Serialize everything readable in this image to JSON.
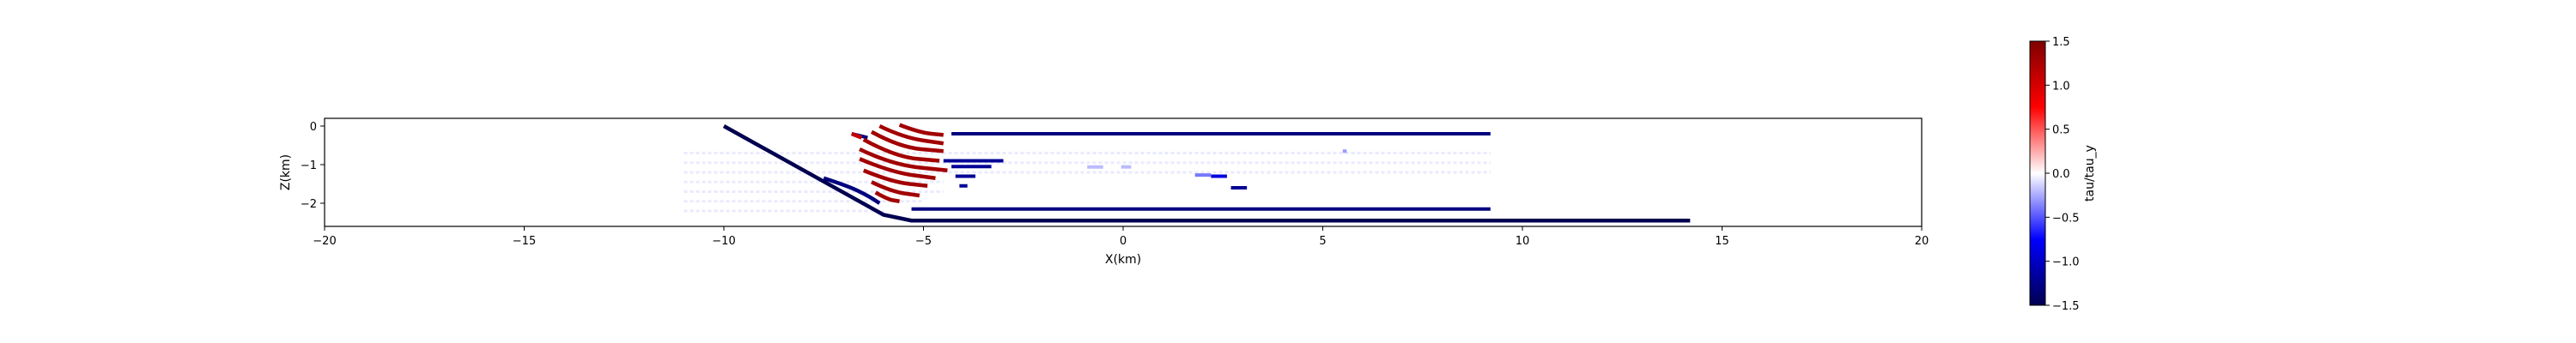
{
  "chart_data": {
    "type": "heatmap",
    "title": "",
    "xlabel": "X(km)",
    "ylabel": "Z(km)",
    "xlim": [
      -20,
      20
    ],
    "ylim": [
      -2.6,
      0.2
    ],
    "x_ticks": [
      -20,
      -15,
      -10,
      -5,
      0,
      5,
      10,
      15,
      20
    ],
    "x_tick_labels": [
      "−20",
      "−15",
      "−10",
      "−5",
      "0",
      "5",
      "10",
      "15",
      "20"
    ],
    "y_ticks": [
      0,
      -1,
      -2
    ],
    "y_tick_labels": [
      "0",
      "−1",
      "−2"
    ],
    "grid": false,
    "colorbar": {
      "label": "tau/tau_y",
      "colormap": "seismic",
      "min": -1.5,
      "max": 1.5,
      "ticks": [
        1.5,
        1.0,
        0.5,
        0.0,
        -0.5,
        -1.0,
        -1.5
      ],
      "tick_labels": [
        "1.5",
        "1.0",
        "0.5",
        "0.0",
        "−0.5",
        "−1.0",
        "−1.5"
      ],
      "colors": {
        "high": "#800000",
        "positive": "#ff0000",
        "zero": "#ffffff",
        "negative": "#0000ff",
        "low": "#000050"
      }
    },
    "fault_lines": [
      {
        "value": -1.5,
        "points": [
          [
            -10.0,
            0.0
          ],
          [
            -6.0,
            -2.3
          ],
          [
            -5.3,
            -2.45
          ],
          [
            14.2,
            -2.45
          ]
        ]
      }
    ],
    "segments": [
      {
        "value": -1.3,
        "x": [
          -6.8,
          -6.4
        ],
        "z": [
          -0.2,
          -0.3
        ]
      },
      {
        "value": -1.3,
        "x": [
          -4.3,
          9.2
        ],
        "z": [
          -0.2,
          -0.2
        ]
      },
      {
        "value": -1.2,
        "x": [
          -4.5,
          -3.0
        ],
        "z": [
          -0.9,
          -0.9
        ]
      },
      {
        "value": -1.2,
        "x": [
          -4.3,
          -3.3
        ],
        "z": [
          -1.05,
          -1.05
        ]
      },
      {
        "value": -1.2,
        "x": [
          -4.2,
          -3.7
        ],
        "z": [
          -1.3,
          -1.3
        ]
      },
      {
        "value": -1.2,
        "x": [
          -4.1,
          -3.9
        ],
        "z": [
          -1.55,
          -1.55
        ]
      },
      {
        "value": -0.9,
        "x": [
          2.2,
          2.6
        ],
        "z": [
          -1.3,
          -1.3
        ]
      },
      {
        "value": -1.2,
        "x": [
          2.7,
          3.1
        ],
        "z": [
          -1.6,
          -1.6
        ]
      },
      {
        "value": -1.3,
        "x": [
          -5.3,
          9.2
        ],
        "z": [
          -2.15,
          -2.15
        ]
      },
      {
        "value": -0.2,
        "x": [
          -0.9,
          -0.5
        ],
        "z": [
          -1.06,
          -1.06
        ]
      },
      {
        "value": -0.2,
        "x": [
          -0.05,
          0.2
        ],
        "z": [
          -1.06,
          -1.06
        ]
      },
      {
        "value": -0.4,
        "x": [
          1.8,
          2.2
        ],
        "z": [
          -1.27,
          -1.27
        ]
      },
      {
        "value": -0.3,
        "x": [
          5.5,
          5.6
        ],
        "z": [
          -0.65,
          -0.65
        ]
      }
    ],
    "curves": [
      {
        "value": -1.3,
        "points": [
          [
            -7.5,
            -1.35
          ],
          [
            -6.9,
            -1.55
          ],
          [
            -6.4,
            -1.8
          ],
          [
            -6.1,
            -2.0
          ]
        ]
      },
      {
        "value": 1.3,
        "points": [
          [
            -5.6,
            0.03
          ],
          [
            -5.1,
            -0.17
          ],
          [
            -4.5,
            -0.23
          ]
        ]
      },
      {
        "value": 1.3,
        "points": [
          [
            -6.1,
            0.0
          ],
          [
            -5.5,
            -0.3
          ],
          [
            -4.5,
            -0.45
          ]
        ]
      },
      {
        "value": 1.3,
        "points": [
          [
            -6.3,
            -0.15
          ],
          [
            -5.6,
            -0.55
          ],
          [
            -4.5,
            -0.65
          ]
        ]
      },
      {
        "value": 1.3,
        "points": [
          [
            -6.5,
            -0.35
          ],
          [
            -5.7,
            -0.8
          ],
          [
            -4.6,
            -0.9
          ]
        ]
      },
      {
        "value": 1.3,
        "points": [
          [
            -6.6,
            -0.6
          ],
          [
            -5.8,
            -1.0
          ],
          [
            -4.4,
            -1.15
          ]
        ]
      },
      {
        "value": 1.3,
        "points": [
          [
            -6.6,
            -0.85
          ],
          [
            -5.8,
            -1.2
          ],
          [
            -4.7,
            -1.35
          ]
        ]
      },
      {
        "value": 1.3,
        "points": [
          [
            -6.5,
            -1.15
          ],
          [
            -5.8,
            -1.45
          ],
          [
            -4.9,
            -1.55
          ]
        ]
      },
      {
        "value": 1.3,
        "points": [
          [
            -6.3,
            -1.45
          ],
          [
            -5.8,
            -1.7
          ],
          [
            -5.1,
            -1.8
          ]
        ]
      },
      {
        "value": 1.3,
        "points": [
          [
            -6.2,
            -1.72
          ],
          [
            -5.9,
            -1.9
          ],
          [
            -5.6,
            -1.95
          ]
        ]
      },
      {
        "value": 1.1,
        "points": [
          [
            -6.8,
            -0.2
          ],
          [
            -6.55,
            -0.3
          ]
        ]
      }
    ],
    "faint_traces": [
      {
        "value": -0.1,
        "x": [
          -11.0,
          9.2
        ],
        "z": [
          -0.7,
          -0.7
        ]
      },
      {
        "value": -0.1,
        "x": [
          -11.0,
          9.2
        ],
        "z": [
          -0.95,
          -0.95
        ]
      },
      {
        "value": -0.1,
        "x": [
          -11.0,
          9.2
        ],
        "z": [
          -1.2,
          -1.2
        ]
      },
      {
        "value": -0.1,
        "x": [
          -11.0,
          -4.5
        ],
        "z": [
          -1.45,
          -1.45
        ]
      },
      {
        "value": -0.1,
        "x": [
          -11.0,
          -4.5
        ],
        "z": [
          -1.7,
          -1.7
        ]
      },
      {
        "value": -0.1,
        "x": [
          -11.0,
          -5.0
        ],
        "z": [
          -1.95,
          -1.95
        ]
      },
      {
        "value": -0.1,
        "x": [
          -11.0,
          -6.0
        ],
        "z": [
          -2.2,
          -2.2
        ]
      }
    ]
  }
}
